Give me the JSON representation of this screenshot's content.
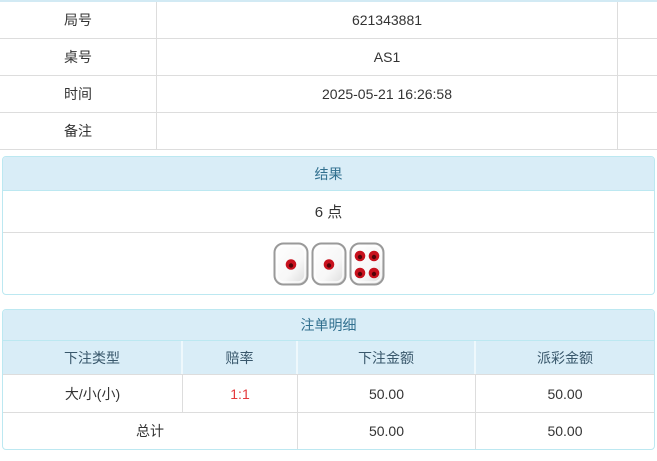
{
  "info_table": {
    "rows": [
      {
        "label": "局号",
        "value": "621343881"
      },
      {
        "label": "桌号",
        "value": "AS1"
      },
      {
        "label": "时间",
        "value": "2025-05-21 16:26:58"
      },
      {
        "label": "备注",
        "value": ""
      }
    ]
  },
  "result_panel": {
    "title": "结果",
    "points": "6 点",
    "dice": [
      1,
      1,
      4
    ]
  },
  "bets_panel": {
    "title": "注单明细",
    "columns": [
      "下注类型",
      "赔率",
      "下注金额",
      "派彩金额"
    ],
    "rows": [
      {
        "bet_type": "大/小(小)",
        "odds": "1:1",
        "bet_amount": "50.00",
        "payout": "50.00"
      }
    ],
    "total_label": "总计",
    "total_bet_amount": "50.00",
    "total_payout": "50.00"
  },
  "colors": {
    "panel_header_bg": "#d9edf7",
    "panel_border": "#bce8f1",
    "panel_header_text": "#31708f",
    "table_border": "#dddddd",
    "body_text": "#333333",
    "odds_red": "#e4393c",
    "die_pip_red": "#c8121e"
  }
}
